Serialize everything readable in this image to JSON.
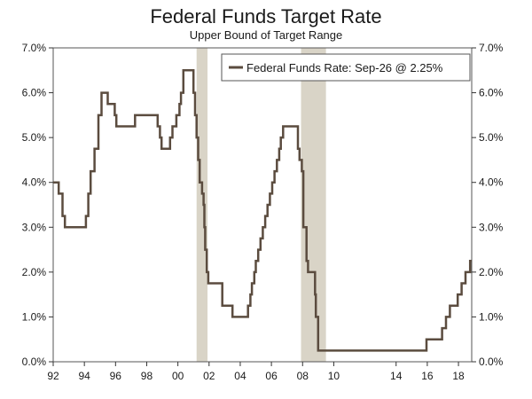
{
  "chart_data": {
    "type": "line",
    "title": "Federal Funds Target Rate",
    "subtitle": "Upper Bound of Target Range",
    "xlabel": "",
    "ylabel": "",
    "xlim": [
      1992.0,
      2018.85
    ],
    "ylim": [
      0.0,
      7.0
    ],
    "x_ticks": [
      1992,
      1994,
      1996,
      1998,
      2000,
      2002,
      2004,
      2006,
      2008,
      2010,
      2014,
      2016,
      2018
    ],
    "x_tick_labels": [
      "92",
      "94",
      "96",
      "98",
      "00",
      "02",
      "04",
      "06",
      "08",
      "10",
      "14",
      "16",
      "18"
    ],
    "y_ticks": [
      0,
      1,
      2,
      3,
      4,
      5,
      6,
      7
    ],
    "y_tick_labels_left": [
      "0.0%",
      "1.0%",
      "2.0%",
      "3.0%",
      "4.0%",
      "5.0%",
      "6.0%",
      "7.0%"
    ],
    "y_tick_labels_right": [
      "0.0%",
      "1.0%",
      "2.0%",
      "3.0%",
      "4.0%",
      "5.0%",
      "6.0%",
      "7.0%"
    ],
    "recessions": [
      {
        "start": 2001.2,
        "end": 2001.9
      },
      {
        "start": 2007.9,
        "end": 2009.5
      }
    ],
    "legend": {
      "label": "Federal Funds Rate: Sep-26 @ 2.25%",
      "position": "top-right"
    },
    "colors": {
      "line": "#5b4c3f",
      "recession": "#d9d4c7",
      "axis": "#333333",
      "frame": "#555555"
    },
    "series": [
      {
        "name": "Federal Funds Rate",
        "points": [
          [
            1992.0,
            4.0
          ],
          [
            1992.35,
            3.75
          ],
          [
            1992.6,
            3.25
          ],
          [
            1992.75,
            3.0
          ],
          [
            1994.1,
            3.25
          ],
          [
            1994.25,
            3.75
          ],
          [
            1994.4,
            4.25
          ],
          [
            1994.65,
            4.75
          ],
          [
            1994.9,
            5.5
          ],
          [
            1995.1,
            6.0
          ],
          [
            1995.5,
            5.75
          ],
          [
            1995.95,
            5.5
          ],
          [
            1996.05,
            5.25
          ],
          [
            1997.25,
            5.5
          ],
          [
            1998.7,
            5.25
          ],
          [
            1998.85,
            5.0
          ],
          [
            1998.95,
            4.75
          ],
          [
            1999.5,
            5.0
          ],
          [
            1999.65,
            5.25
          ],
          [
            1999.9,
            5.5
          ],
          [
            2000.1,
            5.75
          ],
          [
            2000.2,
            6.0
          ],
          [
            2000.35,
            6.5
          ],
          [
            2001.0,
            6.0
          ],
          [
            2001.1,
            5.5
          ],
          [
            2001.2,
            5.0
          ],
          [
            2001.3,
            4.5
          ],
          [
            2001.4,
            4.0
          ],
          [
            2001.55,
            3.75
          ],
          [
            2001.65,
            3.5
          ],
          [
            2001.7,
            3.0
          ],
          [
            2001.75,
            2.5
          ],
          [
            2001.85,
            2.0
          ],
          [
            2001.95,
            1.75
          ],
          [
            2002.85,
            1.25
          ],
          [
            2003.5,
            1.0
          ],
          [
            2004.5,
            1.25
          ],
          [
            2004.65,
            1.5
          ],
          [
            2004.75,
            1.75
          ],
          [
            2004.9,
            2.0
          ],
          [
            2005.0,
            2.25
          ],
          [
            2005.15,
            2.5
          ],
          [
            2005.3,
            2.75
          ],
          [
            2005.45,
            3.0
          ],
          [
            2005.6,
            3.25
          ],
          [
            2005.75,
            3.5
          ],
          [
            2005.9,
            3.75
          ],
          [
            2006.05,
            4.0
          ],
          [
            2006.2,
            4.25
          ],
          [
            2006.35,
            4.5
          ],
          [
            2006.5,
            4.75
          ],
          [
            2006.6,
            5.0
          ],
          [
            2006.75,
            5.25
          ],
          [
            2007.7,
            4.75
          ],
          [
            2007.8,
            4.5
          ],
          [
            2007.95,
            4.25
          ],
          [
            2008.05,
            3.0
          ],
          [
            2008.25,
            2.25
          ],
          [
            2008.35,
            2.0
          ],
          [
            2008.8,
            1.5
          ],
          [
            2008.85,
            1.0
          ],
          [
            2009.0,
            0.25
          ],
          [
            2015.95,
            0.5
          ],
          [
            2016.95,
            0.75
          ],
          [
            2017.2,
            1.0
          ],
          [
            2017.45,
            1.25
          ],
          [
            2017.95,
            1.5
          ],
          [
            2018.2,
            1.75
          ],
          [
            2018.45,
            2.0
          ],
          [
            2018.75,
            2.25
          ],
          [
            2018.85,
            2.25
          ]
        ]
      }
    ]
  }
}
